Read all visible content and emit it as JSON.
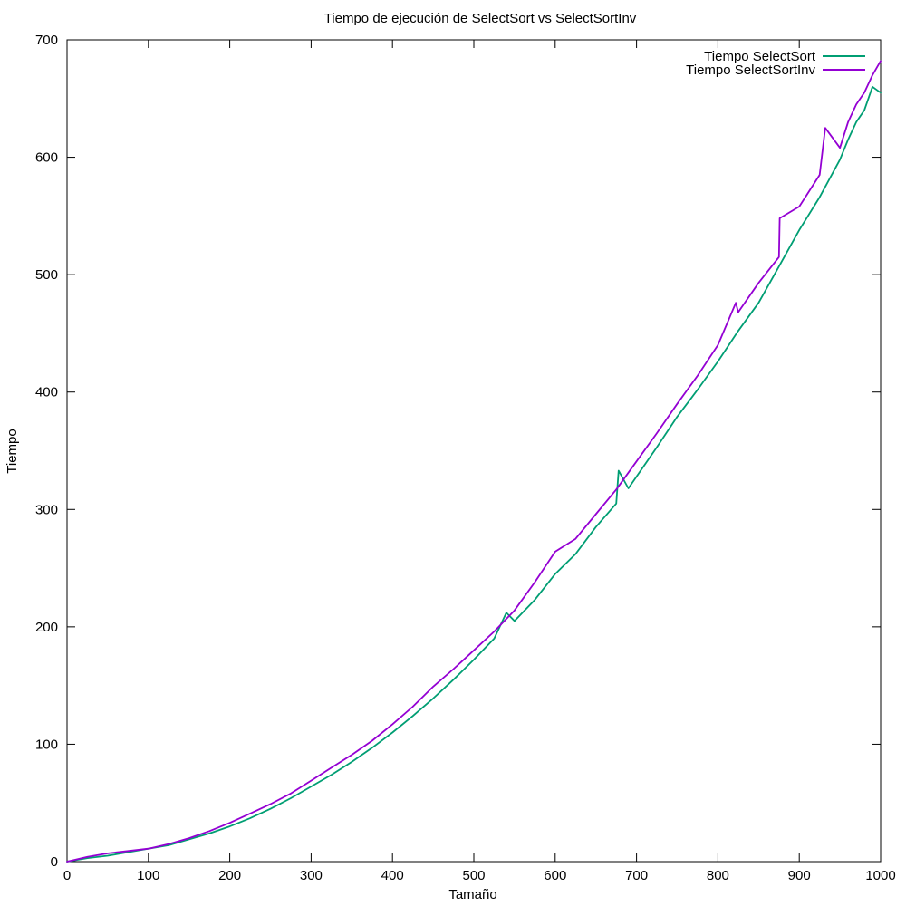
{
  "chart_data": {
    "type": "line",
    "title": "Tiempo de ejecución de SelectSort vs SelectSortInv",
    "xlabel": "Tamaño",
    "ylabel": "Tiempo",
    "xlim": [
      0,
      1000
    ],
    "ylim": [
      0,
      700
    ],
    "xticks": [
      0,
      100,
      200,
      300,
      400,
      500,
      600,
      700,
      800,
      900,
      1000
    ],
    "yticks": [
      0,
      100,
      200,
      300,
      400,
      500,
      600,
      700
    ],
    "grid": false,
    "legend": "top-right",
    "series": [
      {
        "name": "Tiempo SelectSort",
        "color": "#009e73",
        "x": [
          0,
          25,
          50,
          75,
          100,
          125,
          150,
          175,
          200,
          225,
          250,
          275,
          300,
          325,
          350,
          375,
          400,
          425,
          450,
          475,
          500,
          525,
          540,
          550,
          575,
          600,
          625,
          650,
          675,
          678,
          690,
          700,
          725,
          750,
          775,
          800,
          825,
          850,
          875,
          900,
          925,
          950,
          960,
          970,
          980,
          990,
          1000
        ],
        "y": [
          0,
          3,
          5,
          8,
          11,
          14,
          19,
          24,
          30,
          37,
          45,
          54,
          64,
          74,
          85,
          97,
          110,
          124,
          139,
          155,
          172,
          190,
          212,
          205,
          223,
          245,
          262,
          285,
          305,
          333,
          318,
          328,
          353,
          379,
          402,
          426,
          452,
          476,
          507,
          538,
          566,
          598,
          615,
          630,
          640,
          660,
          655
        ]
      },
      {
        "name": "Tiempo SelectSortInv",
        "color": "#9400d3",
        "x": [
          0,
          25,
          50,
          75,
          100,
          125,
          150,
          175,
          200,
          225,
          250,
          275,
          300,
          325,
          350,
          375,
          400,
          425,
          450,
          475,
          500,
          525,
          550,
          575,
          600,
          625,
          650,
          675,
          700,
          725,
          750,
          775,
          800,
          822,
          825,
          850,
          875,
          876,
          900,
          925,
          932,
          950,
          960,
          970,
          980,
          990,
          1000
        ],
        "y": [
          0,
          4,
          7,
          9,
          11,
          15,
          20,
          26,
          33,
          41,
          49,
          58,
          69,
          80,
          91,
          103,
          117,
          132,
          149,
          164,
          180,
          196,
          214,
          238,
          264,
          275,
          296,
          317,
          341,
          365,
          390,
          414,
          440,
          476,
          468,
          493,
          515,
          548,
          558,
          585,
          625,
          608,
          630,
          645,
          655,
          670,
          682
        ]
      }
    ]
  }
}
